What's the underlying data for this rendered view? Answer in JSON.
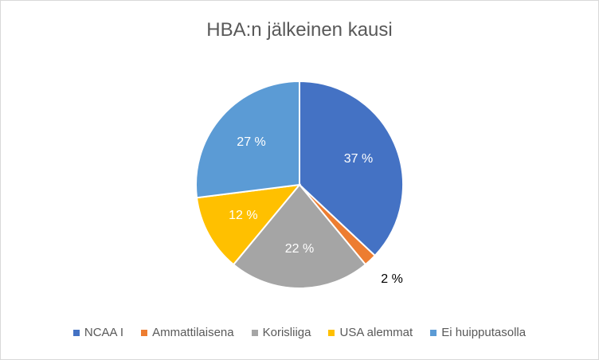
{
  "chart_data": {
    "type": "pie",
    "title": "HBA:n jälkeinen kausi",
    "categories": [
      "NCAA I",
      "Ammattilaisena",
      "Korisliiga",
      "USA alemmat",
      "Ei huipputasolla"
    ],
    "values": [
      37,
      2,
      22,
      12,
      27
    ],
    "data_labels": [
      "37 %",
      "2 %",
      "22 %",
      "12 %",
      "27 %"
    ],
    "colors": [
      "#4472C4",
      "#ED7D31",
      "#A5A5A5",
      "#FFC000",
      "#5B9BD5"
    ],
    "legend_position": "bottom",
    "start_angle_deg": 0,
    "direction": "clockwise"
  }
}
